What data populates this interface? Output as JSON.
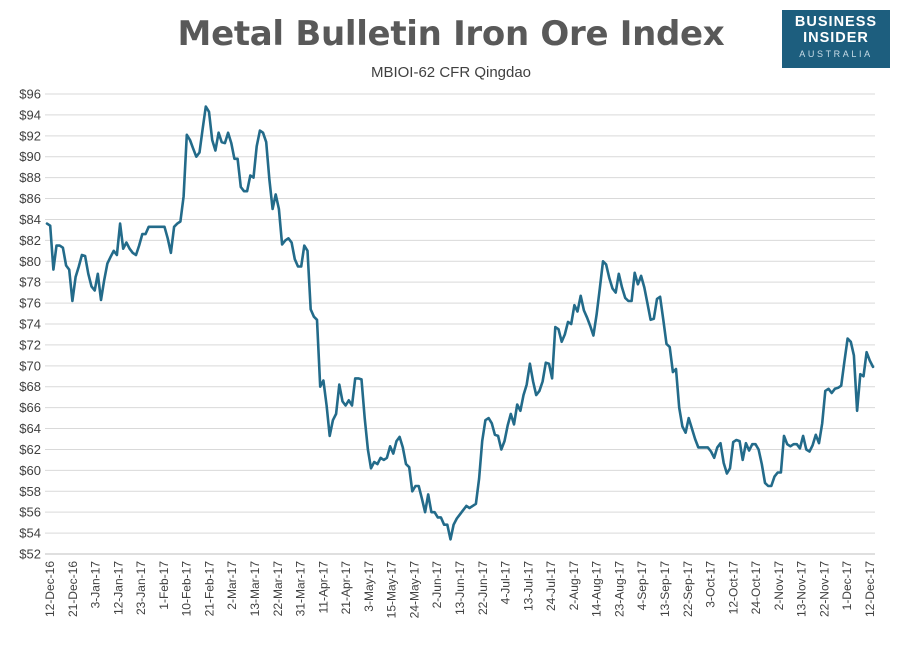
{
  "brand": {
    "line1": "BUSINESS",
    "line2": "INSIDER",
    "line3": "AUSTRALIA",
    "color": "#1d5e7e"
  },
  "chart_data": {
    "type": "line",
    "title": "Metal Bulletin Iron Ore Index",
    "subtitle": "MBIOI-62 CFR Qingdao",
    "y_tick_labels": [
      "$52",
      "$54",
      "$56",
      "$58",
      "$60",
      "$62",
      "$64",
      "$66",
      "$68",
      "$70",
      "$72",
      "$74",
      "$76",
      "$78",
      "$80",
      "$82",
      "$84",
      "$86",
      "$88",
      "$90",
      "$92",
      "$94",
      "$96"
    ],
    "ylim": [
      52,
      96
    ],
    "x_tick_labels": [
      "12-Dec-16",
      "21-Dec-16",
      "3-Jan-17",
      "12-Jan-17",
      "23-Jan-17",
      "1-Feb-17",
      "10-Feb-17",
      "21-Feb-17",
      "2-Mar-17",
      "13-Mar-17",
      "22-Mar-17",
      "31-Mar-17",
      "11-Apr-17",
      "21-Apr-17",
      "3-May-17",
      "15-May-17",
      "24-May-17",
      "2-Jun-17",
      "13-Jun-17",
      "22-Jun-17",
      "4-Jul-17",
      "13-Jul-17",
      "24-Jul-17",
      "2-Aug-17",
      "14-Aug-17",
      "23-Aug-17",
      "4-Sep-17",
      "13-Sep-17",
      "22-Sep-17",
      "3-Oct-17",
      "12-Oct-17",
      "24-Oct-17",
      "2-Nov-17",
      "13-Nov-17",
      "22-Nov-17",
      "1-Dec-17",
      "12-Dec-17"
    ],
    "grid": true,
    "line_color": "#236b8a",
    "series": [
      {
        "values": [
          83.6,
          83.4,
          79.2,
          81.5,
          81.5,
          81.3,
          79.6,
          79.2,
          76.2,
          78.5,
          79.5,
          80.6,
          80.5,
          78.8,
          77.6,
          77.2,
          78.8,
          76.3,
          78.2,
          79.8,
          80.4,
          81.0,
          80.6,
          83.6,
          81.2,
          81.8,
          81.2,
          80.8,
          80.6,
          81.5,
          82.6,
          82.6,
          83.3,
          83.3,
          83.3,
          83.3,
          83.3,
          83.3,
          82.2,
          80.8,
          83.3,
          83.6,
          83.8,
          86.2,
          92.1,
          91.6,
          90.8,
          90.0,
          90.4,
          92.7,
          94.8,
          94.3,
          91.6,
          90.6,
          92.3,
          91.4,
          91.3,
          92.3,
          91.3,
          89.8,
          89.8,
          87.1,
          86.7,
          86.7,
          88.2,
          88.0,
          91.0,
          92.5,
          92.3,
          91.4,
          87.8,
          85.0,
          86.4,
          85.0,
          81.6,
          82.0,
          82.2,
          81.8,
          80.2,
          79.5,
          79.5,
          81.5,
          81.0,
          75.4,
          74.7,
          74.4,
          68.0,
          68.6,
          66.2,
          63.3,
          64.8,
          65.4,
          68.2,
          66.6,
          66.2,
          66.7,
          66.2,
          68.8,
          68.8,
          68.7,
          65.0,
          62.0,
          60.2,
          60.8,
          60.6,
          61.2,
          61.0,
          61.2,
          62.3,
          61.6,
          62.8,
          63.2,
          62.2,
          60.6,
          60.3,
          58.0,
          58.5,
          58.5,
          57.3,
          56.0,
          57.7,
          56.0,
          56.0,
          55.5,
          55.5,
          54.8,
          54.8,
          53.4,
          54.8,
          55.4,
          55.8,
          56.2,
          56.6,
          56.4,
          56.6,
          56.8,
          59.2,
          62.8,
          64.8,
          65.0,
          64.5,
          63.4,
          63.3,
          62.0,
          62.8,
          64.3,
          65.4,
          64.4,
          66.3,
          65.7,
          67.2,
          68.2,
          70.2,
          68.5,
          67.2,
          67.6,
          68.5,
          70.3,
          70.2,
          68.8,
          73.7,
          73.5,
          72.3,
          73.0,
          74.2,
          74.0,
          75.8,
          75.2,
          76.7,
          75.3,
          74.6,
          73.8,
          72.9,
          74.9,
          77.4,
          80.0,
          79.7,
          78.4,
          77.4,
          77.0,
          78.8,
          77.5,
          76.5,
          76.2,
          76.2,
          78.9,
          77.8,
          78.6,
          77.5,
          76.0,
          74.4,
          74.5,
          76.4,
          76.6,
          74.4,
          72.1,
          71.8,
          69.4,
          69.7,
          66.0,
          64.2,
          63.6,
          65.0,
          64.0,
          63.0,
          62.2,
          62.2,
          62.2,
          62.2,
          61.8,
          61.2,
          62.2,
          62.6,
          60.7,
          59.7,
          60.2,
          62.7,
          62.9,
          62.8,
          61.0,
          62.6,
          61.9,
          62.5,
          62.5,
          62.0,
          60.6,
          58.8,
          58.5,
          58.5,
          59.4,
          59.8,
          59.8,
          63.3,
          62.5,
          62.3,
          62.5,
          62.5,
          62.1,
          63.3,
          62.0,
          61.8,
          62.4,
          63.4,
          62.6,
          64.5,
          67.6,
          67.8,
          67.4,
          67.8,
          67.9,
          68.1,
          70.4,
          72.6,
          72.3,
          71.0,
          65.7,
          69.2,
          69.0,
          71.3,
          70.5,
          69.9
        ]
      }
    ]
  }
}
